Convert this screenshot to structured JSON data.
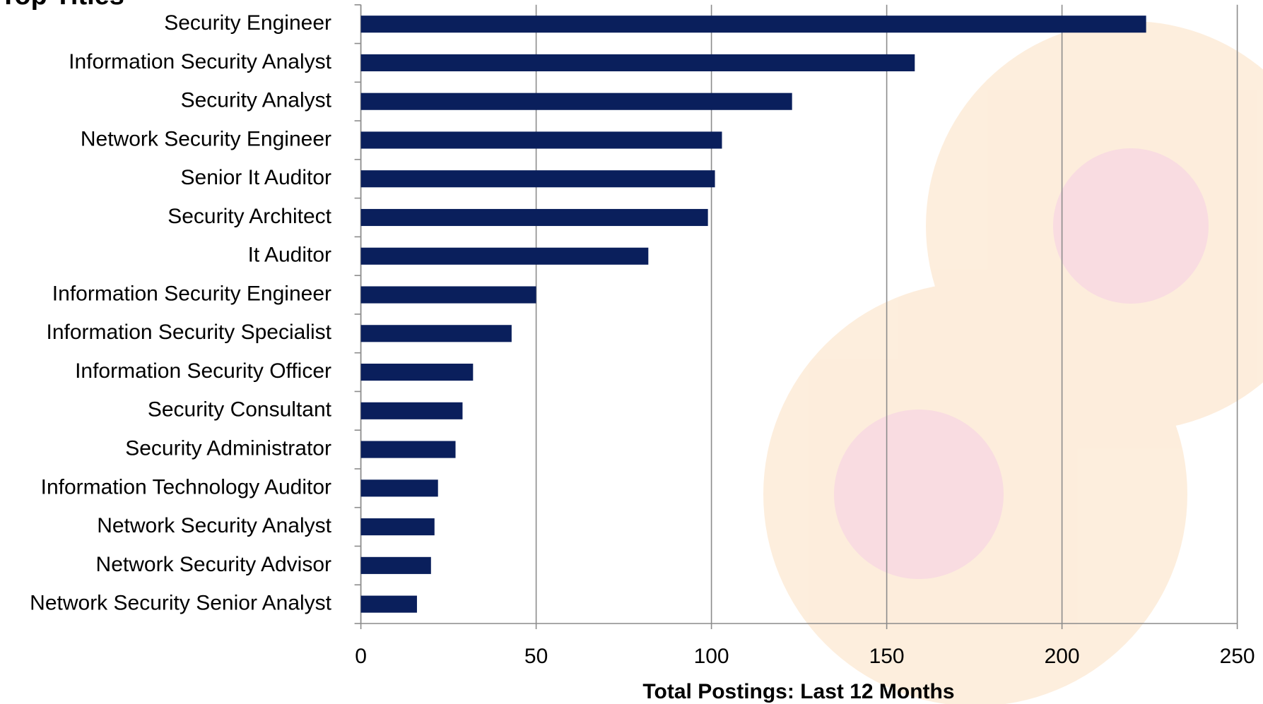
{
  "chart_data": {
    "type": "barh",
    "title": "Top Titles",
    "categories": [
      "Security Engineer",
      "Information Security Analyst",
      "Security Analyst",
      "Network Security Engineer",
      "Senior It Auditor",
      "Security Architect",
      "It Auditor",
      "Information Security Engineer",
      "Information Security Specialist",
      "Information Security Officer",
      "Security Consultant",
      "Security Administrator",
      "Information Technology Auditor",
      "Network Security Analyst",
      "Network Security Advisor",
      "Network Security Senior Analyst"
    ],
    "values": [
      224,
      158,
      123,
      103,
      101,
      99,
      82,
      50,
      43,
      32,
      29,
      27,
      22,
      21,
      20,
      16
    ],
    "color": "#0a1f5c",
    "xlabel": "Total Postings: Last 12 Months",
    "xlim": [
      0,
      250
    ],
    "xticks": [
      0,
      50,
      100,
      150,
      200,
      250
    ],
    "grid": true
  }
}
